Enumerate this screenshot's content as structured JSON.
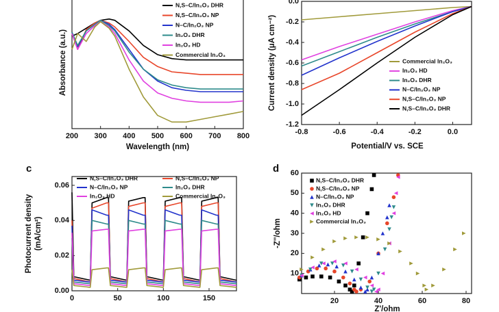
{
  "chart_data": [
    {
      "type": "line",
      "xlabel": "Wavelength (nm)",
      "ylabel": "Absorbance (a.u.)",
      "xlim": [
        200,
        800
      ],
      "xticks": [
        200,
        300,
        400,
        500,
        600,
        700,
        800
      ],
      "ylim": [
        0,
        1
      ],
      "yticks": [],
      "x": [
        200,
        220,
        250,
        280,
        300,
        330,
        350,
        400,
        450,
        500,
        550,
        600,
        650,
        700,
        750,
        800
      ],
      "series": [
        {
          "name": "N,S–C/In₂O₃ DHR",
          "color": "#000000",
          "values": [
            0.7,
            0.72,
            0.76,
            0.8,
            0.82,
            0.83,
            0.82,
            0.74,
            0.63,
            0.56,
            0.53,
            0.52,
            0.52,
            0.52,
            0.52,
            0.52
          ]
        },
        {
          "name": "N,S–C/In₂O₃ NP",
          "color": "#e8462a",
          "values": [
            0.72,
            0.6,
            0.75,
            0.8,
            0.82,
            0.8,
            0.77,
            0.66,
            0.54,
            0.47,
            0.43,
            0.42,
            0.41,
            0.41,
            0.41,
            0.41
          ]
        },
        {
          "name": "N–C/In₂O₃ NP",
          "color": "#2233cc",
          "values": [
            0.73,
            0.62,
            0.74,
            0.79,
            0.82,
            0.79,
            0.75,
            0.6,
            0.45,
            0.36,
            0.31,
            0.29,
            0.28,
            0.28,
            0.28,
            0.28
          ]
        },
        {
          "name": "In₂O₃ DHR",
          "color": "#2e8b8b",
          "values": [
            0.73,
            0.63,
            0.74,
            0.79,
            0.82,
            0.78,
            0.74,
            0.58,
            0.45,
            0.37,
            0.33,
            0.31,
            0.3,
            0.3,
            0.3,
            0.3
          ]
        },
        {
          "name": "In₂O₃ HD",
          "color": "#e040e0",
          "values": [
            0.72,
            0.6,
            0.72,
            0.78,
            0.81,
            0.77,
            0.72,
            0.52,
            0.36,
            0.27,
            0.23,
            0.21,
            0.2,
            0.2,
            0.2,
            0.21
          ]
        },
        {
          "name": "Commercial In₂O₃",
          "color": "#a09a3a",
          "values": [
            0.6,
            0.72,
            0.66,
            0.77,
            0.81,
            0.76,
            0.7,
            0.45,
            0.24,
            0.1,
            0.05,
            0.05,
            0.07,
            0.09,
            0.11,
            0.13
          ]
        }
      ]
    },
    {
      "type": "line",
      "xlabel": "Potential/V vs. SCE",
      "ylabel": "Current density (μA cm⁻²)",
      "xlim": [
        -0.8,
        0.1
      ],
      "xticks": [
        -0.8,
        -0.6,
        -0.4,
        -0.2,
        {
          "value": 0,
          "label": "0.0"
        }
      ],
      "ylim": [
        -1.2,
        0
      ],
      "yticks": [
        {
          "value": 0,
          "label": "0.0"
        },
        -0.2,
        -0.4,
        -0.6,
        -0.8,
        {
          "value": -1,
          "label": "-1.0"
        },
        -1.2
      ],
      "x": [
        -0.8,
        -0.6,
        -0.4,
        -0.2,
        0,
        0.1
      ],
      "series": [
        {
          "name": "Commercial In₂O₃",
          "color": "#a09a3a",
          "values": [
            -0.18,
            -0.15,
            -0.12,
            -0.09,
            -0.06,
            -0.05
          ]
        },
        {
          "name": "In₂O₃ HD",
          "color": "#e040e0",
          "values": [
            -0.57,
            -0.44,
            -0.32,
            -0.2,
            -0.09,
            -0.05
          ]
        },
        {
          "name": "In₂O₃ DHR",
          "color": "#2e8b8b",
          "values": [
            -0.63,
            -0.49,
            -0.35,
            -0.22,
            -0.1,
            -0.05
          ]
        },
        {
          "name": "N–C/In₂O₃ NP",
          "color": "#2233cc",
          "values": [
            -0.72,
            -0.55,
            -0.39,
            -0.24,
            -0.1,
            -0.05
          ]
        },
        {
          "name": "N,S–C/In₂O₃ NP",
          "color": "#e8462a",
          "values": [
            -0.86,
            -0.7,
            -0.5,
            -0.3,
            -0.12,
            -0.05
          ]
        },
        {
          "name": "N,S–C/In₂O₃ DHR",
          "color": "#000000",
          "values": [
            -1.11,
            -0.86,
            -0.6,
            -0.35,
            -0.13,
            -0.05
          ]
        }
      ]
    },
    {
      "type": "line",
      "label": "c",
      "ylabel": [
        "Photocurrent density",
        "(mA/cm²)"
      ],
      "xlim": [
        0,
        180
      ],
      "xticks": [
        0,
        50,
        100,
        150
      ],
      "ylim": [
        0,
        0.065
      ],
      "yticks": [
        {
          "value": 0,
          "label": "0.00"
        },
        {
          "value": 0.02,
          "label": "0.02"
        },
        {
          "value": 0.04,
          "label": "0.04"
        },
        {
          "value": 0.06,
          "label": "0.06"
        }
      ],
      "x": [
        0,
        2,
        20,
        22,
        38,
        40,
        42,
        60,
        62,
        78,
        80,
        82,
        100,
        102,
        118,
        120,
        122,
        140,
        142,
        158,
        160,
        162,
        180
      ],
      "series": [
        {
          "name": "N,S–C/In₂O₃ DHR",
          "color": "#000000",
          "values": [
            0.056,
            0.008,
            0.006,
            0.05,
            0.053,
            0.053,
            0.008,
            0.006,
            0.051,
            0.053,
            0.053,
            0.008,
            0.006,
            0.051,
            0.053,
            0.053,
            0.008,
            0.006,
            0.051,
            0.053,
            0.053,
            0.008,
            0.006
          ]
        },
        {
          "name": "N,S–C/In₂O₃ NP",
          "color": "#e8462a",
          "values": [
            0.04,
            0.007,
            0.005,
            0.047,
            0.05,
            0.05,
            0.007,
            0.005,
            0.048,
            0.05,
            0.05,
            0.007,
            0.005,
            0.048,
            0.05,
            0.05,
            0.007,
            0.005,
            0.048,
            0.05,
            0.05,
            0.007,
            0.005
          ]
        },
        {
          "name": "N–C/In₂O₃ NP",
          "color": "#2233cc",
          "values": [
            0.037,
            0.006,
            0.005,
            0.046,
            0.043,
            0.043,
            0.006,
            0.005,
            0.046,
            0.043,
            0.043,
            0.006,
            0.005,
            0.046,
            0.043,
            0.043,
            0.006,
            0.005,
            0.046,
            0.043,
            0.043,
            0.006,
            0.005
          ]
        },
        {
          "name": "In₂O₃ DHR",
          "color": "#2e8b8b",
          "values": [
            0.03,
            0.005,
            0.004,
            0.04,
            0.038,
            0.038,
            0.005,
            0.004,
            0.04,
            0.038,
            0.038,
            0.005,
            0.004,
            0.04,
            0.038,
            0.038,
            0.005,
            0.004,
            0.04,
            0.038,
            0.038,
            0.005,
            0.004
          ]
        },
        {
          "name": "In₂O₃ HD",
          "color": "#e040e0",
          "values": [
            0.033,
            0.004,
            0.003,
            0.034,
            0.035,
            0.035,
            0.004,
            0.003,
            0.034,
            0.035,
            0.035,
            0.004,
            0.003,
            0.034,
            0.035,
            0.035,
            0.004,
            0.003,
            0.034,
            0.035,
            0.035,
            0.004,
            0.003
          ]
        },
        {
          "name": "Commercial In₂O₃",
          "color": "#a09a3a",
          "values": [
            0.012,
            0.003,
            0.002,
            0.012,
            0.013,
            0.013,
            0.003,
            0.002,
            0.012,
            0.013,
            0.013,
            0.003,
            0.002,
            0.012,
            0.013,
            0.013,
            0.003,
            0.002,
            0.012,
            0.013,
            0.013,
            0.003,
            0.002
          ]
        }
      ]
    },
    {
      "type": "scatter",
      "label": "d",
      "xlabel": "Z'/ohm",
      "ylabel": "-Z''/ohm",
      "xlim": [
        5,
        82.5
      ],
      "xticks": [
        20,
        40,
        60,
        80
      ],
      "ylim": [
        0,
        60
      ],
      "yticks": [
        10,
        20,
        30,
        40,
        50,
        60
      ],
      "series": [
        {
          "name": "N,S–C/In₂O₃ DHR",
          "color": "#000000",
          "marker": "square",
          "x": [
            4,
            7,
            10,
            14,
            18,
            22,
            25,
            27,
            28,
            29,
            31,
            33,
            35,
            37,
            38
          ],
          "values": [
            7,
            8,
            8.5,
            8.5,
            8,
            6,
            4,
            2,
            1,
            4,
            15,
            28,
            40,
            52,
            59
          ]
        },
        {
          "name": "N,S–C/In₂O₃ NP",
          "color": "#e8462a",
          "marker": "circle",
          "x": [
            4,
            8,
            12,
            16,
            20,
            24,
            27,
            29,
            30,
            32,
            36,
            40,
            44,
            47,
            49
          ],
          "values": [
            8,
            11,
            12.5,
            12.5,
            11,
            8,
            5,
            2,
            1,
            2,
            6,
            20,
            35,
            48,
            59
          ]
        },
        {
          "name": "N–C/In₂O₃ NP",
          "color": "#2233cc",
          "marker": "triangle-up",
          "x": [
            5,
            9,
            13,
            17,
            21,
            25,
            29,
            32,
            34,
            35,
            37,
            40,
            42,
            44,
            45
          ],
          "values": [
            9,
            12,
            14,
            14.5,
            13.5,
            11,
            7,
            3,
            1,
            2,
            8,
            20,
            30,
            38,
            44
          ]
        },
        {
          "name": "In₂O₃ DHR",
          "color": "#2e8b8b",
          "marker": "triangle-down",
          "x": [
            5,
            9,
            14,
            19,
            24,
            28,
            32,
            35,
            37,
            38,
            40,
            43,
            45,
            46,
            47
          ],
          "values": [
            9,
            12,
            15,
            15,
            14,
            11,
            7,
            3,
            1,
            2,
            10,
            22,
            32,
            38,
            43
          ]
        },
        {
          "name": "In₂O₃ HD",
          "color": "#e040e0",
          "marker": "triangle-left",
          "x": [
            5,
            10,
            15,
            20,
            25,
            30,
            34,
            37,
            39,
            40,
            42,
            45,
            47,
            48,
            49
          ],
          "values": [
            9,
            13,
            15,
            16,
            15,
            12,
            8,
            4,
            1,
            2,
            10,
            25,
            40,
            50,
            58
          ]
        },
        {
          "name": "Commercial In₂O₃",
          "color": "#a09a3a",
          "marker": "triangle-right",
          "x": [
            5,
            10,
            15,
            20,
            25,
            30,
            35,
            40,
            45,
            50,
            55,
            58,
            61,
            62,
            65,
            70,
            75,
            79
          ],
          "values": [
            12,
            18,
            22,
            26,
            27.5,
            28,
            28,
            27,
            25,
            21,
            15,
            10,
            4,
            2,
            4,
            12,
            22,
            30
          ]
        }
      ]
    }
  ]
}
